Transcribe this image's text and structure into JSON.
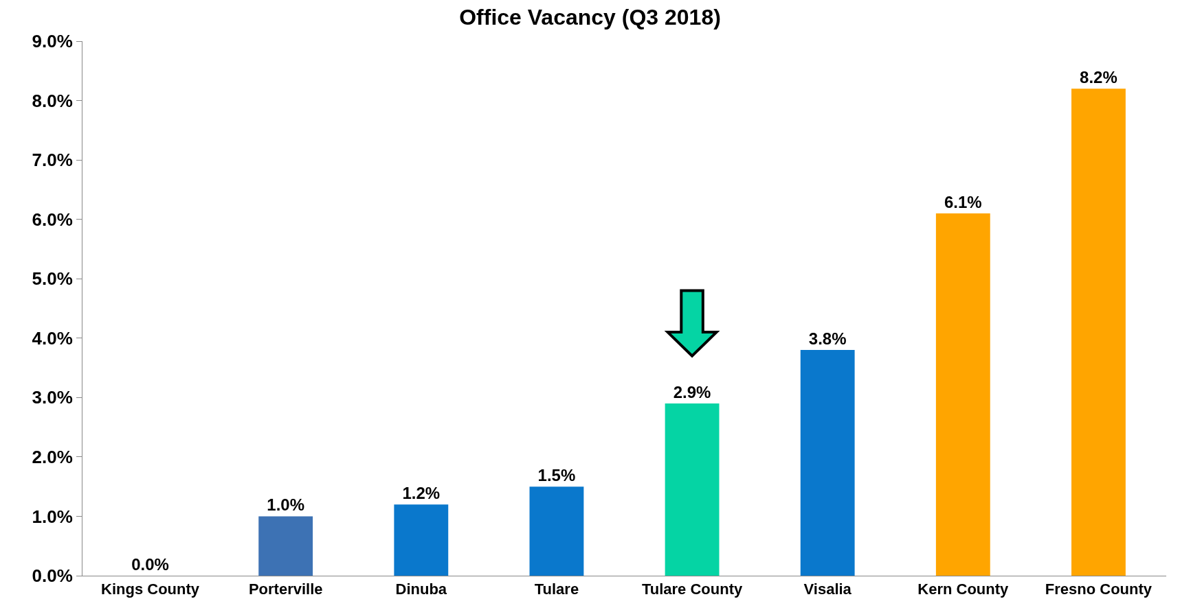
{
  "chart_data": {
    "type": "bar",
    "title": "Office Vacancy (Q3 2018)",
    "categories": [
      "Kings County",
      "Porterville",
      "Dinuba",
      "Tulare",
      "Tulare County",
      "Visalia",
      "Kern County",
      "Fresno County"
    ],
    "values": [
      0.0,
      1.0,
      1.2,
      1.5,
      2.9,
      3.8,
      6.1,
      8.2
    ],
    "value_labels": [
      "0.0%",
      "1.0%",
      "1.2%",
      "1.5%",
      "2.9%",
      "3.8%",
      "6.1%",
      "8.2%"
    ],
    "colors": [
      "#0a78cc",
      "#3d72b4",
      "#0a78cc",
      "#0a78cc",
      "#05d4a4",
      "#0a78cc",
      "#ffa500",
      "#ffa500"
    ],
    "ylim": [
      0,
      9
    ],
    "yticks": [
      {
        "value": 0,
        "label": "0.0%"
      },
      {
        "value": 1,
        "label": "1.0%"
      },
      {
        "value": 2,
        "label": "2.0%"
      },
      {
        "value": 3,
        "label": "3.0%"
      },
      {
        "value": 4,
        "label": "4.0%"
      },
      {
        "value": 5,
        "label": "5.0%"
      },
      {
        "value": 6,
        "label": "6.0%"
      },
      {
        "value": 7,
        "label": "7.0%"
      },
      {
        "value": 8,
        "label": "8.0%"
      },
      {
        "value": 9,
        "label": "9.0%"
      }
    ],
    "legend": false
  }
}
